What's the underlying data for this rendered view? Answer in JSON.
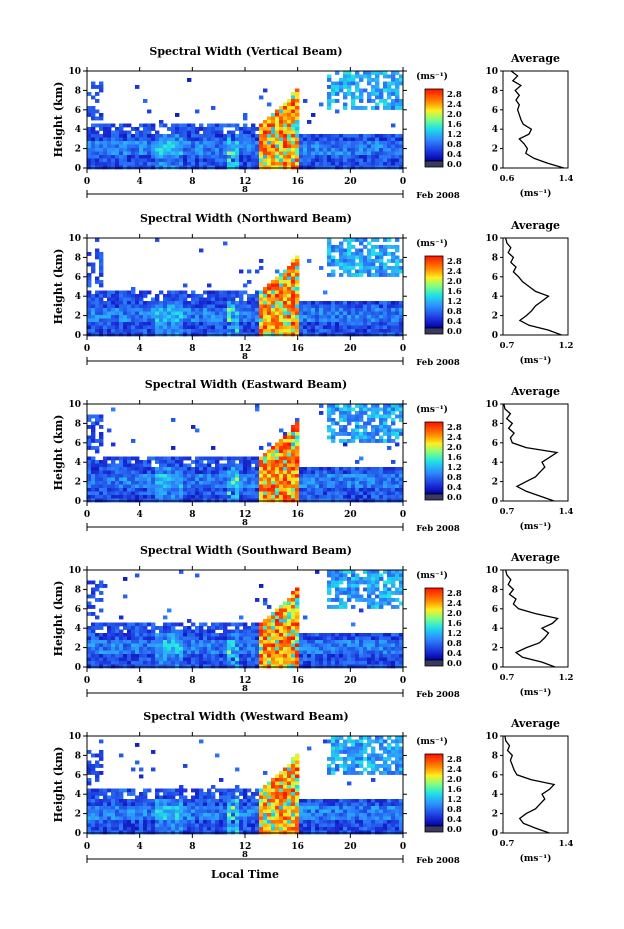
{
  "figure": {
    "bottom_xlabel": "Local Time",
    "date_label": "Feb 2008",
    "day_label": "8",
    "colorbar_unit": "(ms⁻¹)",
    "colorbar_ticks": [
      "2.8",
      "2.4",
      "2.0",
      "1.6",
      "1.2",
      "0.8",
      "0.4",
      "0.0"
    ],
    "average_title": "Average",
    "average_xlabel": "(ms⁻¹)"
  },
  "chart_data": [
    {
      "type": "heatmap",
      "title": "Spectral Width (Vertical Beam)",
      "ylabel": "Height (km)",
      "ylim": [
        0,
        10
      ],
      "yticks": [
        "0",
        "2",
        "4",
        "6",
        "8",
        "10"
      ],
      "xlim": [
        0,
        24
      ],
      "xticks": [
        "0",
        "4",
        "8",
        "12",
        "16",
        "20",
        "0"
      ],
      "color_scale": {
        "min": 0.0,
        "max": 2.8,
        "unit": "ms-1"
      },
      "average_profile": {
        "xlim_labels": [
          "0.6",
          "1.4"
        ],
        "xlim": [
          0.6,
          1.4
        ],
        "height": [
          0,
          0.5,
          1,
          1.5,
          2,
          2.5,
          3,
          3.5,
          4,
          4.5,
          5,
          5.5,
          6,
          6.5,
          7,
          7.5,
          8,
          8.5,
          9,
          9.5,
          10
        ],
        "value": [
          1.35,
          1.15,
          0.98,
          0.88,
          0.9,
          0.86,
          0.8,
          0.92,
          0.95,
          0.85,
          0.82,
          0.8,
          0.78,
          0.8,
          0.76,
          0.8,
          0.75,
          0.82,
          0.72,
          0.78,
          0.7
        ]
      }
    },
    {
      "type": "heatmap",
      "title": "Spectral Width (Northward Beam)",
      "ylabel": "Height (km)",
      "ylim": [
        0,
        10
      ],
      "yticks": [
        "0",
        "2",
        "4",
        "6",
        "8",
        "10"
      ],
      "xlim": [
        0,
        24
      ],
      "xticks": [
        "0",
        "4",
        "8",
        "12",
        "16",
        "20",
        "0"
      ],
      "color_scale": {
        "min": 0.0,
        "max": 2.8,
        "unit": "ms-1"
      },
      "average_profile": {
        "xlim_labels": [
          "0.7",
          "1.2"
        ],
        "xlim": [
          0.7,
          1.2
        ],
        "height": [
          0,
          0.5,
          1,
          1.5,
          2,
          2.5,
          3,
          3.5,
          4,
          4.5,
          5,
          5.5,
          6,
          6.5,
          7,
          7.5,
          8,
          8.5,
          9,
          9.5,
          10
        ],
        "value": [
          1.15,
          1.05,
          0.9,
          0.83,
          0.88,
          0.92,
          0.95,
          1.0,
          1.05,
          0.95,
          0.9,
          0.85,
          0.82,
          0.78,
          0.8,
          0.76,
          0.78,
          0.74,
          0.76,
          0.73,
          0.72
        ]
      }
    },
    {
      "type": "heatmap",
      "title": "Spectral Width (Eastward Beam)",
      "ylabel": "Height (km)",
      "ylim": [
        0,
        10
      ],
      "yticks": [
        "0",
        "2",
        "4",
        "6",
        "8",
        "10"
      ],
      "xlim": [
        0,
        24
      ],
      "xticks": [
        "0",
        "4",
        "8",
        "12",
        "16",
        "20",
        "0"
      ],
      "color_scale": {
        "min": 0.0,
        "max": 2.8,
        "unit": "ms-1"
      },
      "average_profile": {
        "xlim_labels": [
          "0.7",
          "1.4"
        ],
        "xlim": [
          0.7,
          1.4
        ],
        "height": [
          0,
          0.5,
          1,
          1.5,
          2,
          2.5,
          3,
          3.5,
          4,
          4.5,
          5,
          5.5,
          6,
          6.5,
          7,
          7.5,
          8,
          8.5,
          9,
          9.5,
          10
        ],
        "value": [
          1.25,
          1.1,
          0.95,
          0.85,
          0.95,
          1.05,
          1.1,
          1.15,
          1.12,
          1.2,
          1.28,
          0.95,
          0.8,
          0.78,
          0.82,
          0.76,
          0.8,
          0.74,
          0.78,
          0.72,
          0.71
        ]
      }
    },
    {
      "type": "heatmap",
      "title": "Spectral Width (Southward Beam)",
      "ylabel": "Height (km)",
      "ylim": [
        0,
        10
      ],
      "yticks": [
        "0",
        "2",
        "4",
        "6",
        "8",
        "10"
      ],
      "xlim": [
        0,
        24
      ],
      "xticks": [
        "0",
        "4",
        "8",
        "12",
        "16",
        "20",
        "0"
      ],
      "color_scale": {
        "min": 0.0,
        "max": 2.8,
        "unit": "ms-1"
      },
      "average_profile": {
        "xlim_labels": [
          "0.7",
          "1.2"
        ],
        "xlim": [
          0.7,
          1.2
        ],
        "height": [
          0,
          0.5,
          1,
          1.5,
          2,
          2.5,
          3,
          3.5,
          4,
          4.5,
          5,
          5.5,
          6,
          6.5,
          7,
          7.5,
          8,
          8.5,
          9,
          9.5,
          10
        ],
        "value": [
          1.1,
          1.0,
          0.85,
          0.8,
          0.88,
          0.98,
          1.02,
          1.05,
          1.0,
          1.08,
          1.12,
          0.95,
          0.82,
          0.78,
          0.8,
          0.75,
          0.78,
          0.74,
          0.76,
          0.73,
          0.72
        ]
      }
    },
    {
      "type": "heatmap",
      "title": "Spectral Width (Westward Beam)",
      "ylabel": "Height (km)",
      "ylim": [
        0,
        10
      ],
      "yticks": [
        "0",
        "2",
        "4",
        "6",
        "8",
        "10"
      ],
      "xlim": [
        0,
        24
      ],
      "xticks": [
        "0",
        "4",
        "8",
        "12",
        "16",
        "20",
        "0"
      ],
      "color_scale": {
        "min": 0.0,
        "max": 2.8,
        "unit": "ms-1"
      },
      "average_profile": {
        "xlim_labels": [
          "0.7",
          "1.4"
        ],
        "xlim": [
          0.7,
          1.4
        ],
        "height": [
          0,
          0.5,
          1,
          1.5,
          2,
          2.5,
          3,
          3.5,
          4,
          4.5,
          5,
          5.5,
          6,
          6.5,
          7,
          7.5,
          8,
          8.5,
          9,
          9.5,
          10
        ],
        "value": [
          1.2,
          1.05,
          0.92,
          0.88,
          0.95,
          1.05,
          1.1,
          1.15,
          1.12,
          1.2,
          1.25,
          1.0,
          0.85,
          0.82,
          0.8,
          0.78,
          0.8,
          0.75,
          0.77,
          0.73,
          0.72
        ]
      }
    }
  ]
}
